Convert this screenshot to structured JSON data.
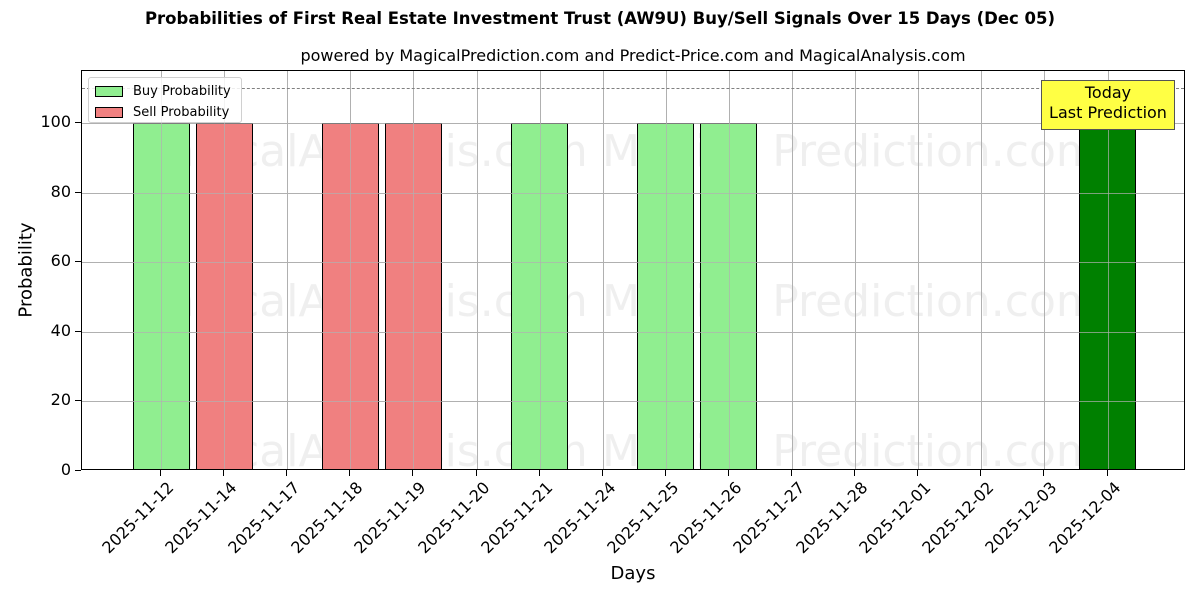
{
  "title": "Probabilities of First Real Estate Investment Trust (AW9U) Buy/Sell Signals Over 15 Days (Dec 05)",
  "subtitle": "powered by MagicalPrediction.com and Predict-Price.com and MagicalAnalysis.com",
  "watermarks": [
    "MagicalAnalysis.com",
    "Magica Prediction.com"
  ],
  "annotation": {
    "line1": "Today",
    "line2": "Last Prediction"
  },
  "colors": {
    "buy": "#90ee90",
    "sell": "#f08080",
    "today": "#008000",
    "annotation_bg": "#ffff44"
  },
  "chart_data": {
    "type": "bar",
    "title": "Probabilities of First Real Estate Investment Trust (AW9U) Buy/Sell Signals Over 15 Days (Dec 05)",
    "subtitle": "powered by MagicalPrediction.com and Predict-Price.com and MagicalAnalysis.com",
    "xlabel": "Days",
    "ylabel": "Probability",
    "ylim": [
      0,
      115
    ],
    "yticks": [
      0,
      20,
      40,
      60,
      80,
      100
    ],
    "grid": true,
    "legend_position": "upper left",
    "reference_line": {
      "y": 110,
      "style": "dashed",
      "color": "#808080"
    },
    "categories": [
      "2025-11-12",
      "2025-11-14",
      "2025-11-17",
      "2025-11-18",
      "2025-11-19",
      "2025-11-20",
      "2025-11-21",
      "2025-11-24",
      "2025-11-25",
      "2025-11-26",
      "2025-11-27",
      "2025-11-28",
      "2025-12-01",
      "2025-12-02",
      "2025-12-03",
      "2025-12-04"
    ],
    "series": [
      {
        "name": "Buy Probability",
        "color": "#90ee90",
        "values": [
          100,
          0,
          0,
          0,
          0,
          0,
          100,
          0,
          100,
          100,
          0,
          0,
          0,
          0,
          0,
          100
        ]
      },
      {
        "name": "Sell Probability",
        "color": "#f08080",
        "values": [
          0,
          100,
          0,
          100,
          100,
          0,
          0,
          0,
          0,
          0,
          0,
          0,
          0,
          0,
          0,
          0
        ]
      }
    ],
    "highlight": {
      "category": "2025-12-04",
      "label": "Today\nLast Prediction",
      "bar_color": "#008000"
    }
  }
}
